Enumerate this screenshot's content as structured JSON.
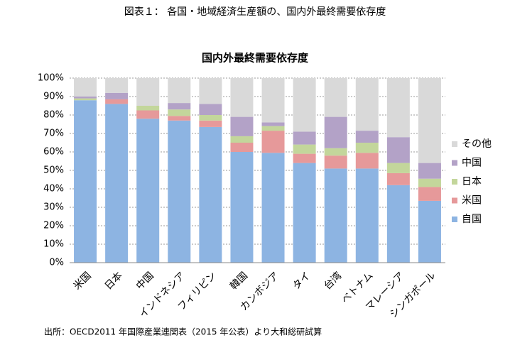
{
  "header": "図表１： 各国・地域経済生産額の、国内外最終需要依存度",
  "source": "出所：OECD2011 年国際産業連関表（2015 年公表）より大和総研試算",
  "chart_data": {
    "type": "stacked_bar",
    "title": "国内外最終需要依存度",
    "categories": [
      "米国",
      "日本",
      "中国",
      "インドネシア",
      "フィリピン",
      "韓国",
      "カンボジア",
      "タイ",
      "台湾",
      "ベトナム",
      "マレーシア",
      "シンガポール"
    ],
    "series": [
      {
        "name": "自国",
        "color": "#8db4e2",
        "values": [
          88,
          86,
          78,
          77,
          73.5,
          60,
          59.5,
          54,
          51,
          51,
          42,
          33.5
        ]
      },
      {
        "name": "米国",
        "color": "#e6999a",
        "values": [
          0,
          2.5,
          4.5,
          2.5,
          3.5,
          5,
          12,
          5,
          7,
          8.5,
          6.5,
          7.5
        ]
      },
      {
        "name": "日本",
        "color": "#c3d69b",
        "values": [
          1,
          0,
          2.5,
          3.5,
          3,
          3.5,
          2.5,
          5,
          4,
          5.5,
          5.5,
          4.5
        ]
      },
      {
        "name": "中国",
        "color": "#b3a2c7",
        "values": [
          1,
          3.5,
          0,
          3.5,
          6,
          10.5,
          2,
          7,
          17,
          6.5,
          14,
          8.5
        ]
      },
      {
        "name": "その他",
        "color": "#d9d9d9",
        "values": [
          10,
          8,
          15,
          13.5,
          14,
          21,
          24,
          29,
          21,
          28.5,
          32,
          46
        ]
      }
    ],
    "ylim": [
      0,
      100
    ],
    "yticks": [
      {
        "value": 0,
        "label": "0%"
      },
      {
        "value": 10,
        "label": "10%"
      },
      {
        "value": 20,
        "label": "20%"
      },
      {
        "value": 30,
        "label": "30%"
      },
      {
        "value": 40,
        "label": "40%"
      },
      {
        "value": 50,
        "label": "50%"
      },
      {
        "value": 60,
        "label": "60%"
      },
      {
        "value": 70,
        "label": "70%"
      },
      {
        "value": 80,
        "label": "80%"
      },
      {
        "value": 90,
        "label": "90%"
      },
      {
        "value": 100,
        "label": "100%"
      }
    ],
    "grid": true,
    "legend": "right"
  }
}
